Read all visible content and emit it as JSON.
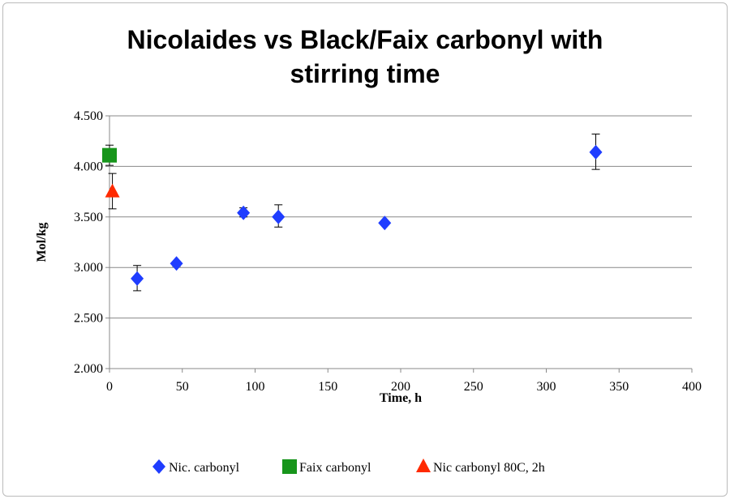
{
  "chart_data": {
    "type": "scatter",
    "title": [
      "Nicolaides vs Black/Faix carbonyl with",
      "stirring time"
    ],
    "xlabel": "Time, h",
    "ylabel": "Mol/kg",
    "xlim": [
      0,
      400
    ],
    "ylim": [
      2.0,
      4.5
    ],
    "xticks": [
      "0",
      "50",
      "100",
      "150",
      "200",
      "250",
      "300",
      "350",
      "400"
    ],
    "yticks": [
      "2.000",
      "2.500",
      "3.000",
      "3.500",
      "4.000",
      "4.500"
    ],
    "grid": "horizontal",
    "legend_position": "bottom",
    "series": [
      {
        "name": "Nic. carbonyl",
        "color": "#1f3dff",
        "marker": "diamond",
        "points": [
          {
            "x": 19,
            "y": 2.89,
            "err_low": 2.77,
            "err_high": 3.02
          },
          {
            "x": 46,
            "y": 3.04,
            "err_low": 3.01,
            "err_high": 3.06
          },
          {
            "x": 92,
            "y": 3.54,
            "err_low": 3.5,
            "err_high": 3.59
          },
          {
            "x": 116,
            "y": 3.5,
            "err_low": 3.4,
            "err_high": 3.62
          },
          {
            "x": 189,
            "y": 3.44,
            "err_low": 3.43,
            "err_high": 3.46
          },
          {
            "x": 334,
            "y": 4.14,
            "err_low": 3.97,
            "err_high": 4.32
          }
        ]
      },
      {
        "name": "Faix carbonyl",
        "color": "#17951b",
        "marker": "square",
        "points": [
          {
            "x": 0,
            "y": 4.11,
            "err_low": 4.01,
            "err_high": 4.21
          }
        ]
      },
      {
        "name": "Nic carbonyl 80C, 2h",
        "color": "#ff2a00",
        "marker": "triangle",
        "points": [
          {
            "x": 2,
            "y": 3.75,
            "err_low": 3.58,
            "err_high": 3.93
          }
        ]
      }
    ]
  }
}
